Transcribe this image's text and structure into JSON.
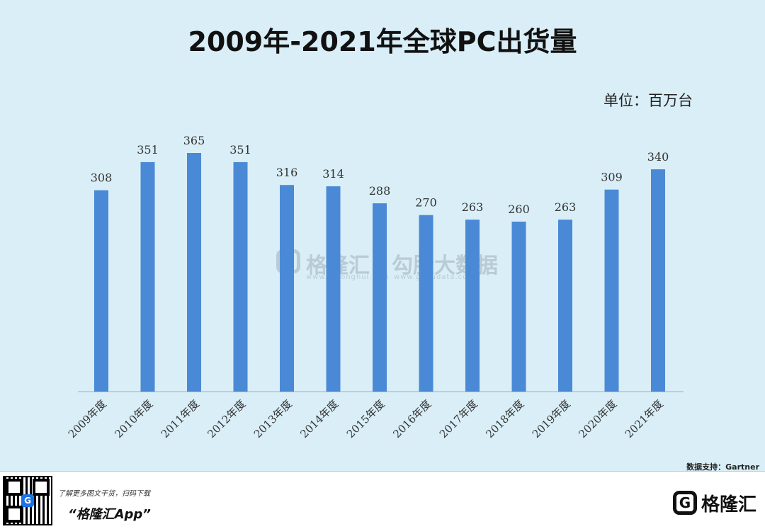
{
  "title": "2009年-2021年全球PC出货量",
  "unit_label": "单位：百万台",
  "watermark": {
    "brand": "格隆汇",
    "brand_url": "www.gelonghui.com",
    "partner": "勾股大数据",
    "partner_url": "www.gogudata.com"
  },
  "source": "数据支持：Gartner",
  "footer": {
    "promo_line": "了解更多图文干货，扫码下载",
    "promo_app": "“格隆汇App”",
    "brand_name": "格隆汇",
    "qr_logo": "G"
  },
  "colors": {
    "bar": "#4a89d6",
    "background": "#d9eef7",
    "axis": "#9bb0bc"
  },
  "chart_data": {
    "type": "bar",
    "title": "2009年-2021年全球PC出货量",
    "categories": [
      "2009年度",
      "2010年度",
      "2011年度",
      "2012年度",
      "2013年度",
      "2014年度",
      "2015年度",
      "2016年度",
      "2017年度",
      "2018年度",
      "2019年度",
      "2020年度",
      "2021年度"
    ],
    "values": [
      308,
      351,
      365,
      351,
      316,
      314,
      288,
      270,
      263,
      260,
      263,
      309,
      340
    ],
    "ylim": [
      0,
      365
    ],
    "grid": false,
    "legend": "none"
  }
}
